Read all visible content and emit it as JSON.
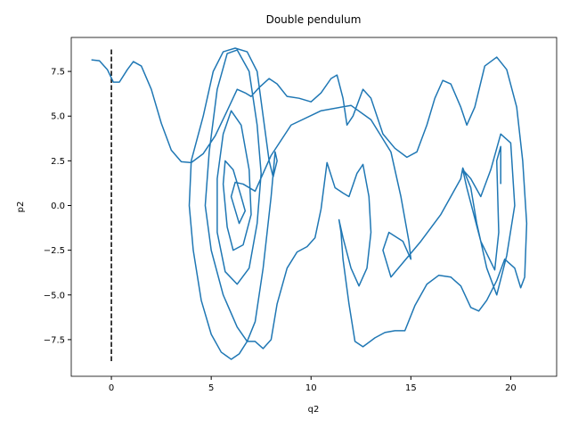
{
  "chart_data": {
    "type": "line",
    "title": "Double pendulum",
    "x_label": "q2",
    "y_label": "p2",
    "xlim": [
      -2.01,
      22.3
    ],
    "ylim": [
      -9.55,
      9.4
    ],
    "xticks": [
      0,
      5,
      10,
      15,
      20
    ],
    "yticks": [
      {
        "value": -7.5,
        "label": "−7.5"
      },
      {
        "value": -5,
        "label": "−5.0"
      },
      {
        "value": -2.5,
        "label": "−2.5"
      },
      {
        "value": 0,
        "label": "0.0"
      },
      2.5,
      {
        "value": 5,
        "label": "5.0"
      },
      7.5
    ],
    "vline": {
      "x": 0,
      "ymin": -8.7,
      "ymax": 8.8,
      "color": "#000000"
    },
    "series": [
      {
        "color": "#1f77b4",
        "x": [
          -1,
          -0.6,
          -0.2,
          0.1,
          0.4,
          0.8,
          1.1,
          1.5,
          2,
          2.5,
          3,
          3.5,
          4,
          4.6,
          5.2,
          5.8,
          6.3,
          6.7,
          7,
          7.4,
          7.9,
          8.3,
          8.8,
          9.4,
          10,
          10.5,
          11,
          11.3,
          11.6,
          11.8,
          12.1,
          12.6,
          13,
          13.6,
          14.2,
          14.8,
          15.3,
          15.8,
          16.2,
          16.6,
          17,
          17.5,
          17.8,
          18.2,
          18.7,
          19.3,
          19.8,
          20.3,
          20.6,
          20.8,
          20.7,
          20.5,
          20.2,
          19.7,
          19.3,
          18.8,
          18.4,
          18,
          17.5,
          17,
          16.4,
          15.8,
          15.2,
          14.7,
          14.2,
          13.7,
          13.2,
          12.6,
          12.2,
          11.9,
          11.6,
          11.5,
          11.4,
          11.6,
          12,
          12.4,
          12.8,
          13,
          12.9,
          12.6,
          12.3,
          11.9,
          11.6,
          11.2,
          10.8,
          10.5,
          10.2,
          9.8,
          9.3,
          8.8,
          8.3,
          8,
          7.6,
          7.2,
          6.8,
          6.4,
          6,
          5.5,
          5,
          4.5,
          4.1,
          3.9,
          4,
          4.6,
          5.1,
          5.6,
          6.2,
          6.8,
          7.3,
          7.6,
          7.9,
          8.1,
          8.3,
          8.2,
          8,
          7.6,
          7.2,
          6.8,
          6.3,
          5.6,
          5,
          4.7,
          4.9,
          5.3,
          5.8,
          6.3,
          6.9,
          7.3,
          7.5,
          7.3,
          6.9,
          6.3,
          5.7,
          5.3,
          5.3,
          5.6,
          6,
          6.5,
          6.9,
          7,
          6.6,
          6.1,
          5.8,
          5.6,
          5.7,
          6.1,
          6.5,
          6.7,
          6.4,
          6,
          6.2,
          6.6,
          7.2,
          8,
          9,
          10.5,
          12,
          13,
          14,
          14.5,
          14.9,
          15,
          14.6,
          13.9,
          13.6,
          14,
          15.5,
          16.5,
          17.5,
          17.6,
          18,
          18.3,
          18.8,
          19.3,
          19.8,
          20.2,
          20,
          19.5,
          19,
          18.5,
          18,
          17.6,
          17.8,
          18.5,
          19.2,
          19.4,
          19.3,
          19.5,
          19.5
        ],
        "values": [
          8.15,
          8.1,
          7.6,
          6.9,
          6.9,
          7.6,
          8.05,
          7.8,
          6.5,
          4.6,
          3.1,
          2.45,
          2.4,
          2.9,
          3.9,
          5.3,
          6.5,
          6.3,
          6.1,
          6.6,
          7.1,
          6.8,
          6.1,
          6,
          5.8,
          6.3,
          7.1,
          7.3,
          6,
          4.5,
          5,
          6.5,
          6,
          4,
          3.2,
          2.7,
          3,
          4.5,
          6,
          7,
          6.8,
          5.5,
          4.5,
          5.5,
          7.8,
          8.3,
          7.6,
          5.5,
          2.5,
          -1,
          -4,
          -4.6,
          -3.5,
          -3,
          -4.2,
          -5.3,
          -5.9,
          -5.7,
          -4.5,
          -4,
          -3.9,
          -4.4,
          -5.6,
          -7,
          -7,
          -7.1,
          -7.4,
          -7.9,
          -7.6,
          -5.5,
          -3,
          -1.5,
          -0.8,
          -1.8,
          -3.5,
          -4.5,
          -3.5,
          -1.5,
          0.5,
          2.3,
          1.8,
          0.5,
          0.7,
          1,
          2.4,
          -0.2,
          -1.8,
          -2.3,
          -2.6,
          -3.5,
          -5.5,
          -7.5,
          -8,
          -7.6,
          -7.6,
          -8.3,
          -8.6,
          -8.2,
          -7.2,
          -5.3,
          -2.5,
          0,
          2.5,
          5,
          7.5,
          8.6,
          8.8,
          8.6,
          7.5,
          5,
          2.5,
          1.6,
          2.5,
          3,
          0.5,
          -3.5,
          -6.5,
          -7.6,
          -6.8,
          -5,
          -2.5,
          0,
          3,
          6.5,
          8.5,
          8.7,
          7.5,
          4.5,
          1.8,
          -1,
          -3.5,
          -4.4,
          -3.7,
          -1.5,
          1.5,
          4,
          5.3,
          4.5,
          2,
          -0.5,
          -2.2,
          -2.5,
          -1.2,
          1.2,
          2.5,
          2,
          0.5,
          -0.3,
          -1,
          0.5,
          1.3,
          1.2,
          0.8,
          2.8,
          4.5,
          5.3,
          5.6,
          4.8,
          3,
          0.5,
          -2,
          -3,
          -2,
          -1.5,
          -2.5,
          -4,
          -2,
          -0.5,
          1.5,
          2.1,
          1,
          -1,
          -3.5,
          -5,
          -2.8,
          0,
          3.5,
          4,
          2,
          0.5,
          1.5,
          2,
          1,
          -2,
          -3.6,
          -1.5,
          2.5,
          3.3,
          1.2
        ]
      }
    ]
  }
}
